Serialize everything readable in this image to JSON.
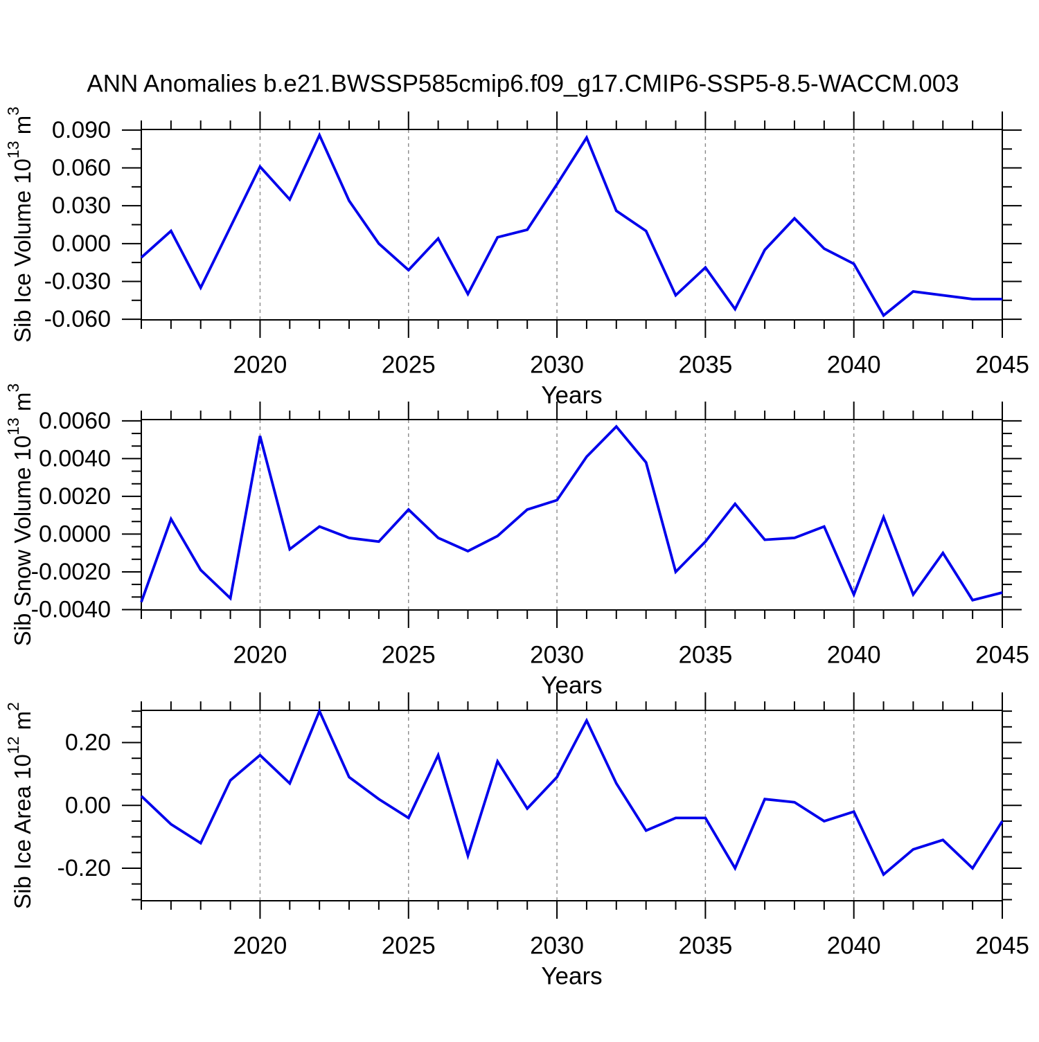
{
  "title": "ANN Anomalies b.e21.BWSSP585cmip6.f09_g17.CMIP6-SSP5-8.5-WACCM.003",
  "colors": {
    "line": "#0000EB",
    "grid": "#8a8a8a",
    "axis": "#000000",
    "background": "#ffffff"
  },
  "x_axis": {
    "label": "Years",
    "years": [
      2016,
      2017,
      2018,
      2019,
      2020,
      2021,
      2022,
      2023,
      2024,
      2025,
      2026,
      2027,
      2028,
      2029,
      2030,
      2031,
      2032,
      2033,
      2034,
      2035,
      2036,
      2037,
      2038,
      2039,
      2040,
      2041,
      2042,
      2043,
      2044,
      2045
    ],
    "xlim": [
      2016,
      2045
    ],
    "major_ticks": [
      2020,
      2025,
      2030,
      2035,
      2040,
      2045
    ],
    "major_labels": [
      "2020",
      "2025",
      "2030",
      "2035",
      "2040",
      "2045"
    ],
    "gridlines": [
      2020,
      2025,
      2030,
      2035,
      2040
    ],
    "grid_style": "dashed"
  },
  "chart_data": [
    {
      "type": "line",
      "name": "sib-ice-volume-anomaly",
      "ylabel_parts": [
        {
          "t": "Sib Ice Volume 10"
        },
        {
          "t": "13",
          "sup": true
        },
        {
          "t": " m"
        },
        {
          "t": "3",
          "sup": true
        }
      ],
      "ylim": [
        -0.0605,
        0.0905
      ],
      "y_major_ticks": [
        0.09,
        0.06,
        0.03,
        0.0,
        -0.03,
        -0.06
      ],
      "y_tick_labels": [
        "0.090",
        "0.060",
        "0.030",
        "0.000",
        "-0.030",
        "-0.060"
      ],
      "y_minor_subdiv": 2,
      "values": [
        -0.011,
        0.01,
        -0.035,
        0.013,
        0.061,
        0.035,
        0.086,
        0.034,
        0.0,
        -0.021,
        0.004,
        -0.04,
        0.005,
        0.011,
        0.047,
        0.084,
        0.026,
        0.01,
        -0.041,
        -0.019,
        -0.052,
        -0.005,
        0.02,
        -0.004,
        -0.016,
        -0.057,
        -0.038,
        -0.041,
        -0.044,
        -0.044
      ]
    },
    {
      "type": "line",
      "name": "sib-snow-volume-anomaly",
      "ylabel_parts": [
        {
          "t": "Sib Snow Volume 10"
        },
        {
          "t": "13",
          "sup": true
        },
        {
          "t": " m"
        },
        {
          "t": "3",
          "sup": true
        }
      ],
      "ylim": [
        -0.00402,
        0.00607
      ],
      "y_major_ticks": [
        0.006,
        0.004,
        0.002,
        0.0,
        -0.002,
        -0.004
      ],
      "y_tick_labels": [
        "0.0060",
        "0.0040",
        "0.0020",
        "0.0000",
        "-0.0020",
        "-0.0040"
      ],
      "y_minor_subdiv": 3,
      "values": [
        -0.0036,
        0.0008,
        -0.0019,
        -0.0034,
        0.0052,
        -0.0008,
        0.0004,
        -0.0002,
        -0.0004,
        0.0013,
        -0.0002,
        -0.0009,
        -0.0001,
        0.0013,
        0.0018,
        0.0041,
        0.0057,
        0.0038,
        -0.002,
        -0.0004,
        0.0016,
        -0.0003,
        -0.0002,
        0.0004,
        -0.0032,
        0.0009,
        -0.0032,
        -0.001,
        -0.0035,
        -0.0031
      ]
    },
    {
      "type": "line",
      "name": "sib-ice-area-anomaly",
      "ylabel_parts": [
        {
          "t": "Sib Ice Area 10"
        },
        {
          "t": "12",
          "sup": true
        },
        {
          "t": " m"
        },
        {
          "t": "2",
          "sup": true
        }
      ],
      "ylim": [
        -0.3035,
        0.3025
      ],
      "y_major_ticks": [
        0.2,
        0.0,
        -0.2
      ],
      "y_tick_labels": [
        "0.20",
        "0.00",
        "-0.20"
      ],
      "y_minor_subdiv": 4,
      "values": [
        0.03,
        -0.06,
        -0.12,
        0.08,
        0.16,
        0.07,
        0.3,
        0.09,
        0.02,
        -0.04,
        0.16,
        -0.16,
        0.14,
        -0.01,
        0.09,
        0.27,
        0.07,
        -0.08,
        -0.04,
        -0.04,
        -0.2,
        0.02,
        0.01,
        -0.05,
        -0.02,
        -0.22,
        -0.14,
        -0.11,
        -0.2,
        -0.05
      ]
    }
  ]
}
